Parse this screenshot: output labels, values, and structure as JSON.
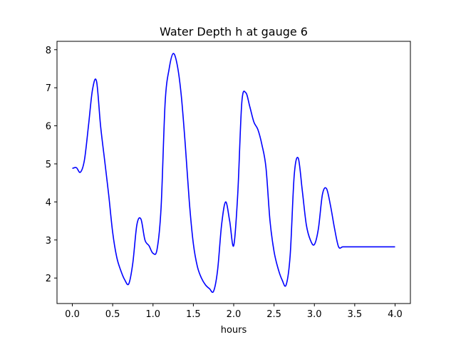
{
  "chart_data": {
    "type": "line",
    "title": "Water Depth h at gauge 6",
    "xlabel": "hours",
    "ylabel": "",
    "xlim": [
      -0.19,
      4.19
    ],
    "ylim": [
      1.33,
      8.22
    ],
    "grid": false,
    "legend": "none",
    "xticks": [
      0.0,
      0.5,
      1.0,
      1.5,
      2.0,
      2.5,
      3.0,
      3.5,
      4.0
    ],
    "xtick_labels": [
      "0.0",
      "0.5",
      "1.0",
      "1.5",
      "2.0",
      "2.5",
      "3.0",
      "3.5",
      "4.0"
    ],
    "yticks": [
      2,
      3,
      4,
      5,
      6,
      7,
      8
    ],
    "ytick_labels": [
      "2",
      "3",
      "4",
      "5",
      "6",
      "7",
      "8"
    ],
    "series": [
      {
        "color": "#0000ff",
        "x": [
          0.0,
          0.05,
          0.1,
          0.15,
          0.2,
          0.25,
          0.3,
          0.35,
          0.4,
          0.45,
          0.5,
          0.55,
          0.6,
          0.65,
          0.7,
          0.75,
          0.8,
          0.85,
          0.9,
          0.95,
          1.0,
          1.05,
          1.1,
          1.15,
          1.2,
          1.25,
          1.3,
          1.35,
          1.4,
          1.45,
          1.5,
          1.55,
          1.6,
          1.65,
          1.7,
          1.75,
          1.8,
          1.85,
          1.9,
          1.95,
          2.0,
          2.05,
          2.1,
          2.15,
          2.2,
          2.25,
          2.3,
          2.35,
          2.4,
          2.45,
          2.5,
          2.55,
          2.6,
          2.65,
          2.7,
          2.75,
          2.8,
          2.85,
          2.9,
          2.95,
          3.0,
          3.05,
          3.1,
          3.15,
          3.2,
          3.25,
          3.3,
          3.35,
          3.4,
          3.45,
          3.5,
          3.55,
          3.6,
          3.65,
          3.7,
          3.75,
          3.8,
          3.85,
          3.9,
          3.95,
          4.0
        ],
        "y": [
          4.88,
          4.9,
          4.78,
          5.1,
          6.0,
          6.95,
          7.17,
          6.0,
          5.1,
          4.2,
          3.2,
          2.55,
          2.2,
          1.95,
          1.85,
          2.4,
          3.4,
          3.55,
          3.0,
          2.85,
          2.65,
          2.75,
          3.85,
          6.6,
          7.5,
          7.9,
          7.6,
          6.8,
          5.5,
          4.0,
          2.9,
          2.3,
          2.0,
          1.82,
          1.72,
          1.65,
          2.2,
          3.4,
          4.0,
          3.5,
          2.85,
          4.2,
          6.6,
          6.87,
          6.5,
          6.1,
          5.9,
          5.5,
          4.9,
          3.5,
          2.7,
          2.25,
          1.95,
          1.82,
          2.6,
          4.7,
          5.15,
          4.3,
          3.4,
          3.0,
          2.88,
          3.3,
          4.2,
          4.35,
          3.9,
          3.3,
          2.82,
          2.82,
          2.82,
          2.82,
          2.82,
          2.82,
          2.82,
          2.82,
          2.82,
          2.82,
          2.82,
          2.82,
          2.82,
          2.82,
          2.82
        ]
      }
    ]
  }
}
